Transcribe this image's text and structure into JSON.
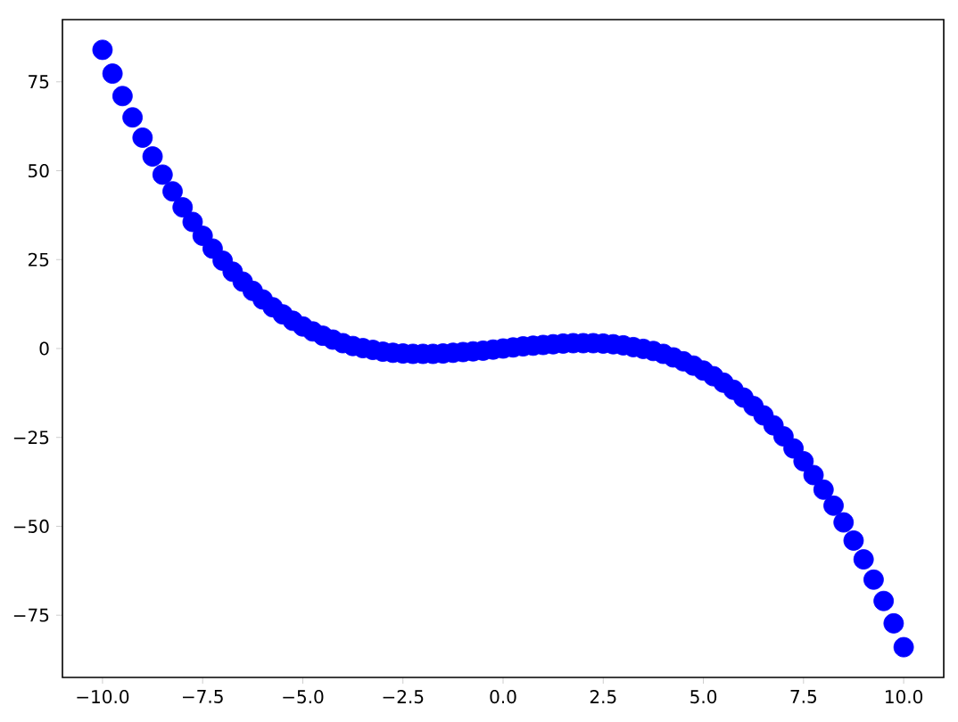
{
  "chart_data": {
    "type": "scatter",
    "marker": "circle",
    "color": "#0000ff",
    "x": [
      -10,
      -9.75,
      -9.5,
      -9.25,
      -9,
      -8.75,
      -8.5,
      -8.25,
      -8,
      -7.75,
      -7.5,
      -7.25,
      -7,
      -6.75,
      -6.5,
      -6.25,
      -6,
      -5.75,
      -5.5,
      -5.25,
      -5,
      -4.75,
      -4.5,
      -4.25,
      -4,
      -3.75,
      -3.5,
      -3.25,
      -3,
      -2.75,
      -2.5,
      -2.25,
      -2,
      -1.75,
      -1.5,
      -1.25,
      -1,
      -0.75,
      -0.5,
      -0.25,
      0,
      0.25,
      0.5,
      0.75,
      1,
      1.25,
      1.5,
      1.75,
      2,
      2.25,
      2.5,
      2.75,
      3,
      3.25,
      3.5,
      3.75,
      4,
      4.25,
      4.5,
      4.75,
      5,
      5.25,
      5.5,
      5.75,
      6,
      6.25,
      6.5,
      6.75,
      7,
      7.25,
      7.5,
      7.75,
      8,
      8.25,
      8.5,
      8.75,
      9,
      9.25,
      9.5,
      9.75,
      10
    ],
    "values": [
      84.0,
      77.3,
      71.0,
      65.0,
      59.3,
      54.0,
      48.9,
      44.2,
      39.7,
      35.6,
      31.7,
      28.1,
      24.7,
      21.6,
      18.8,
      16.2,
      13.8,
      11.6,
      9.6,
      7.8,
      6.2,
      4.8,
      3.6,
      2.5,
      1.5,
      0.7,
      0.1,
      -0.4,
      -0.9,
      -1.2,
      -1.4,
      -1.5,
      -1.5,
      -1.5,
      -1.4,
      -1.2,
      -1.0,
      -0.8,
      -0.6,
      -0.3,
      0,
      0.3,
      0.6,
      0.8,
      1.0,
      1.2,
      1.4,
      1.5,
      1.5,
      1.5,
      1.4,
      1.2,
      0.9,
      0.4,
      -0.1,
      -0.7,
      -1.5,
      -2.5,
      -3.6,
      -4.8,
      -6.2,
      -7.8,
      -9.6,
      -11.6,
      -13.8,
      -16.2,
      -18.8,
      -21.6,
      -24.7,
      -28.1,
      -31.7,
      -35.6,
      -39.7,
      -44.2,
      -48.9,
      -54.0,
      -59.3,
      -65.0,
      -71.0,
      -77.3,
      -84.0
    ],
    "xlim": [
      -11,
      11
    ],
    "ylim": [
      -92.5,
      92.5
    ],
    "xticks": [
      {
        "value": -10,
        "label": "−10.0"
      },
      {
        "value": -7.5,
        "label": "−7.5"
      },
      {
        "value": -5,
        "label": "−5.0"
      },
      {
        "value": -2.5,
        "label": "−2.5"
      },
      {
        "value": 0,
        "label": "0.0"
      },
      {
        "value": 2.5,
        "label": "2.5"
      },
      {
        "value": 5,
        "label": "5.0"
      },
      {
        "value": 7.5,
        "label": "7.5"
      },
      {
        "value": 10,
        "label": "10.0"
      }
    ],
    "yticks": [
      {
        "value": -75,
        "label": "−75"
      },
      {
        "value": -50,
        "label": "−50"
      },
      {
        "value": -25,
        "label": "−25"
      },
      0,
      25,
      50,
      75
    ]
  }
}
